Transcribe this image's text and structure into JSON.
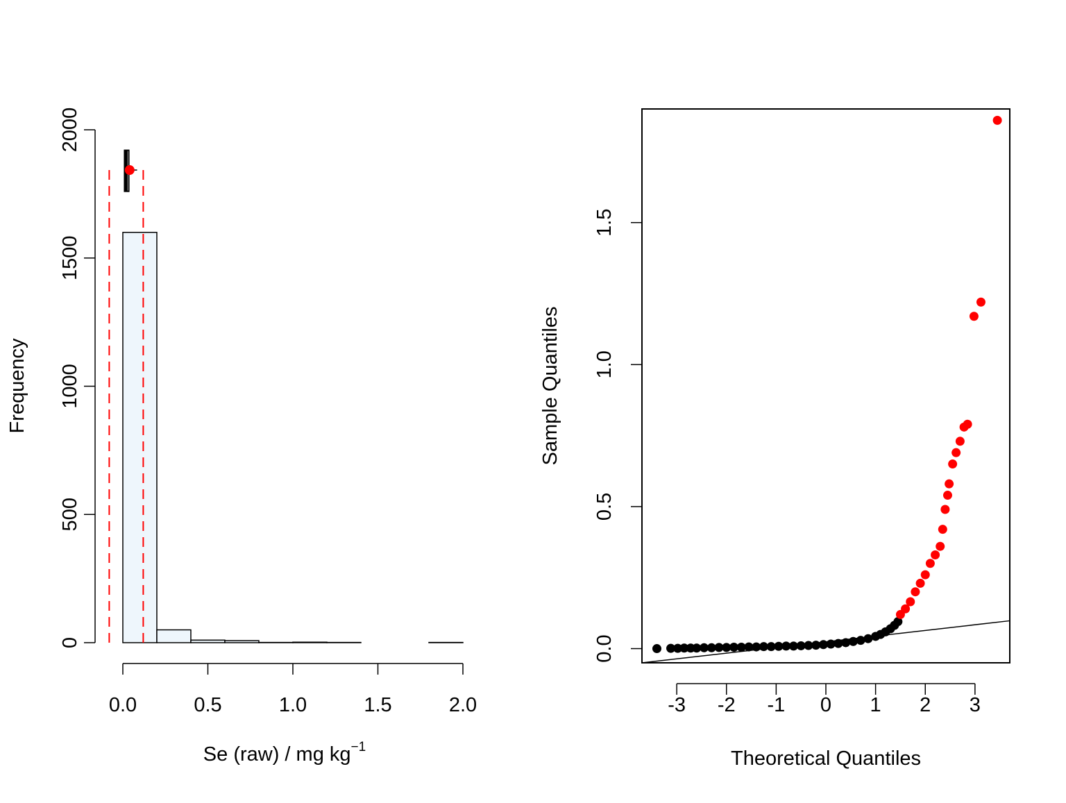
{
  "colors": {
    "bar_fill": "#eef6fc",
    "outlier": "#ff0000",
    "normal_point": "#000000",
    "dashed_line": "#ff0000",
    "axis": "#000000"
  },
  "chart_data": [
    {
      "type": "bar",
      "subtype": "histogram",
      "title": "",
      "xlabel": "Se (raw) / mg kg",
      "xlabel_superscript": "−1",
      "ylabel": "Frequency",
      "xlim": [
        0,
        2.0
      ],
      "ylim": [
        0,
        2000
      ],
      "x_ticks": [
        0.0,
        0.5,
        1.0,
        1.5,
        2.0
      ],
      "x_tick_labels": [
        "0.0",
        "0.5",
        "1.0",
        "1.5",
        "2.0"
      ],
      "y_ticks": [
        0,
        500,
        1000,
        1500,
        2000
      ],
      "y_tick_labels": [
        "0",
        "500",
        "1000",
        "1500",
        "2000"
      ],
      "bins": [
        {
          "x0": 0.0,
          "x1": 0.2,
          "count": 1600
        },
        {
          "x0": 0.2,
          "x1": 0.4,
          "count": 50
        },
        {
          "x0": 0.4,
          "x1": 0.6,
          "count": 10
        },
        {
          "x0": 0.6,
          "x1": 0.8,
          "count": 8
        },
        {
          "x0": 0.8,
          "x1": 1.0,
          "count": 1
        },
        {
          "x0": 1.0,
          "x1": 1.2,
          "count": 2
        },
        {
          "x0": 1.2,
          "x1": 1.4,
          "count": 1
        },
        {
          "x0": 1.4,
          "x1": 1.6,
          "count": 0
        },
        {
          "x0": 1.6,
          "x1": 1.8,
          "count": 0
        },
        {
          "x0": 1.8,
          "x1": 2.0,
          "count": 1
        }
      ],
      "boxplot": {
        "q1": 0.01,
        "q3": 0.035,
        "median": 0.02,
        "y_low": 1760,
        "y_high": 1920
      },
      "mean_point": {
        "x": 0.04,
        "y": 1843
      },
      "dashed_lines": [
        {
          "x": -0.08,
          "y_top": 1843
        },
        {
          "x": 0.12,
          "y_top": 1843
        }
      ],
      "grid": false,
      "legend": "none"
    },
    {
      "type": "scatter",
      "subtype": "qq-plot",
      "title": "",
      "xlabel": "Theoretical Quantiles",
      "ylabel": "Sample Quantiles",
      "xlim": [
        -3.7,
        3.7
      ],
      "ylim": [
        -0.05,
        1.9
      ],
      "x_ticks": [
        -3,
        -2,
        -1,
        0,
        1,
        2,
        3
      ],
      "x_tick_labels": [
        "-3",
        "-2",
        "-1",
        "0",
        "1",
        "2",
        "3"
      ],
      "y_ticks": [
        0.0,
        0.5,
        1.0,
        1.5
      ],
      "y_tick_labels": [
        "0.0",
        "0.5",
        "1.0",
        "1.5"
      ],
      "reference_line": {
        "x": [
          -3.7,
          3.7
        ],
        "y": [
          -0.05,
          0.098
        ]
      },
      "series": [
        {
          "group": "within",
          "color": "#000000",
          "points": [
            [
              -3.4,
              0.0
            ],
            [
              -3.12,
              0.001
            ],
            [
              -2.98,
              0.001
            ],
            [
              -2.85,
              0.002
            ],
            [
              -2.72,
              0.002
            ],
            [
              -2.6,
              0.002
            ],
            [
              -2.45,
              0.003
            ],
            [
              -2.3,
              0.003
            ],
            [
              -2.15,
              0.004
            ],
            [
              -2.0,
              0.004
            ],
            [
              -1.85,
              0.005
            ],
            [
              -1.7,
              0.005
            ],
            [
              -1.55,
              0.006
            ],
            [
              -1.4,
              0.006
            ],
            [
              -1.25,
              0.007
            ],
            [
              -1.1,
              0.007
            ],
            [
              -0.95,
              0.008
            ],
            [
              -0.8,
              0.009
            ],
            [
              -0.65,
              0.009
            ],
            [
              -0.5,
              0.01
            ],
            [
              -0.35,
              0.011
            ],
            [
              -0.2,
              0.012
            ],
            [
              -0.05,
              0.014
            ],
            [
              0.1,
              0.016
            ],
            [
              0.25,
              0.018
            ],
            [
              0.4,
              0.021
            ],
            [
              0.55,
              0.025
            ],
            [
              0.7,
              0.029
            ],
            [
              0.85,
              0.035
            ],
            [
              1.0,
              0.043
            ],
            [
              1.1,
              0.05
            ],
            [
              1.2,
              0.059
            ],
            [
              1.3,
              0.07
            ],
            [
              1.38,
              0.082
            ],
            [
              1.45,
              0.095
            ]
          ]
        },
        {
          "group": "outliers",
          "color": "#ff0000",
          "points": [
            [
              1.5,
              0.12
            ],
            [
              1.6,
              0.14
            ],
            [
              1.7,
              0.165
            ],
            [
              1.8,
              0.2
            ],
            [
              1.9,
              0.23
            ],
            [
              2.0,
              0.26
            ],
            [
              2.1,
              0.3
            ],
            [
              2.2,
              0.33
            ],
            [
              2.3,
              0.36
            ],
            [
              2.35,
              0.42
            ],
            [
              2.4,
              0.49
            ],
            [
              2.45,
              0.54
            ],
            [
              2.48,
              0.58
            ],
            [
              2.55,
              0.65
            ],
            [
              2.62,
              0.69
            ],
            [
              2.7,
              0.73
            ],
            [
              2.78,
              0.78
            ],
            [
              2.85,
              0.79
            ],
            [
              2.98,
              1.17
            ],
            [
              3.12,
              1.22
            ],
            [
              3.45,
              1.86
            ]
          ]
        }
      ],
      "grid": false,
      "legend": "none"
    }
  ]
}
